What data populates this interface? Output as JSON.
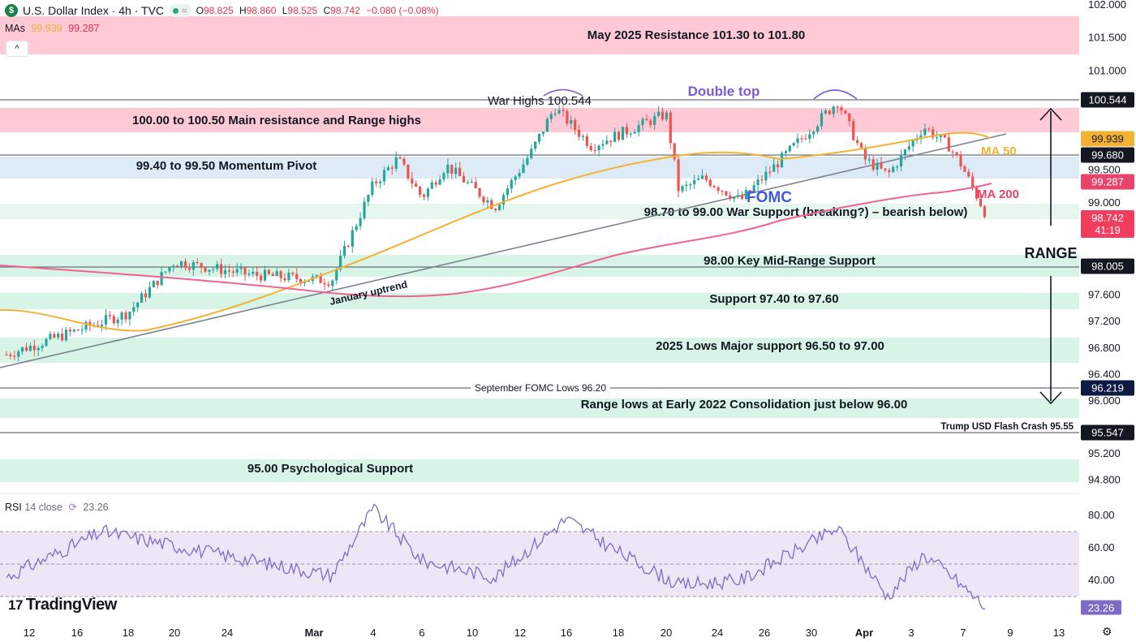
{
  "header": {
    "symbol_icon": "$",
    "title": "U.S. Dollar Index · 4h · TVC",
    "status_icon": "market-open-dot",
    "wave_icon": "≈",
    "ohlc": {
      "o_label": "O",
      "o": "98.825",
      "h_label": "H",
      "h": "98.860",
      "l_label": "L",
      "l": "98.525",
      "c_label": "C",
      "c": "98.742",
      "chg": "−0.080 (−0.08%)"
    }
  },
  "mas": {
    "label": "MAs",
    "ma50": "99.939",
    "ma200": "99.287"
  },
  "collapse_icon": "^",
  "rsi_header": {
    "label": "RSI",
    "params": "14 close",
    "value": "23.26"
  },
  "brand": {
    "mark": "17",
    "name": "TradingView"
  },
  "colors": {
    "up": "#26a69a",
    "down": "#ef5350",
    "ma50": "#f4b235",
    "ma200": "#f06292",
    "resistance_zone": "#ffc9d6",
    "pivot_zone": "#dcebf6",
    "support_zone": "#d7f4e6",
    "rsi": "#7e6bc4"
  },
  "chart_data": [
    {
      "type": "candlestick",
      "title": "U.S. Dollar Index · 4h · TVC",
      "ylim": [
        94.6,
        102.0
      ],
      "y_ticks": [
        "102.000",
        "101.500",
        "101.000",
        "99.500",
        "99.000",
        "97.600",
        "97.200",
        "96.800",
        "96.400",
        "96.000",
        "95.200",
        "94.800"
      ],
      "x_ticks": [
        "12",
        "16",
        "18",
        "20",
        "24",
        "Mar",
        "4",
        "6",
        "10",
        "12",
        "16",
        "18",
        "20",
        "24",
        "26",
        "30",
        "Apr",
        "3",
        "7",
        "9",
        "13"
      ],
      "key_points": [
        {
          "x": "Feb 11",
          "close": 96.55
        },
        {
          "x": "Feb 18",
          "close": 97.2
        },
        {
          "x": "Feb 20",
          "close": 98.0
        },
        {
          "x": "Feb 25",
          "close": 97.8
        },
        {
          "x": "Mar 1",
          "close": 97.7
        },
        {
          "x": "Mar 3",
          "close": 99.2
        },
        {
          "x": "Mar 4",
          "close": 99.6
        },
        {
          "x": "Mar 5",
          "close": 99.0
        },
        {
          "x": "Mar 7",
          "close": 99.5
        },
        {
          "x": "Mar 10",
          "close": 98.85
        },
        {
          "x": "Mar 12",
          "close": 99.7
        },
        {
          "x": "Mar 14",
          "close": 100.4
        },
        {
          "x": "Mar 16",
          "close": 99.8
        },
        {
          "x": "Mar 19",
          "close": 100.3
        },
        {
          "x": "Mar 20",
          "close": 99.1
        },
        {
          "x": "Mar 22",
          "close": 99.3
        },
        {
          "x": "Mar 24",
          "close": 98.95
        },
        {
          "x": "Mar 27",
          "close": 99.7
        },
        {
          "x": "Mar 30",
          "close": 100.5
        },
        {
          "x": "Mar 31",
          "close": 99.6
        },
        {
          "x": "Apr 1",
          "close": 99.35
        },
        {
          "x": "Apr 3",
          "close": 100.1
        },
        {
          "x": "Apr 5",
          "close": 99.8
        },
        {
          "x": "Apr 6",
          "close": 99.5
        },
        {
          "x": "Apr 7",
          "close": 98.74
        }
      ],
      "series": [
        {
          "name": "MA 50",
          "last": 99.939
        },
        {
          "name": "MA 200",
          "last": 99.287
        }
      ],
      "price_tags": [
        {
          "value": "100.544",
          "style": "dark"
        },
        {
          "value": "99.939",
          "style": "ma50"
        },
        {
          "value": "99.680",
          "style": "dark"
        },
        {
          "value": "99.287",
          "style": "ma200"
        },
        {
          "value": "98.742",
          "sub": "41:19",
          "style": "last"
        },
        {
          "value": "98.005",
          "style": "dark"
        },
        {
          "value": "96.219",
          "style": "navy"
        },
        {
          "value": "95.547",
          "style": "dark"
        }
      ],
      "zones": [
        {
          "label": "May 2025 Resistance 101.30 to 101.80",
          "low": 101.3,
          "high": 101.8,
          "kind": "resistance"
        },
        {
          "label": "100.00 to 100.50 Main resistance and Range highs",
          "low": 100.0,
          "high": 100.5,
          "kind": "resistance"
        },
        {
          "label": "99.40 to 99.50 Momentum Pivot",
          "low": 99.4,
          "high": 99.5,
          "kind": "pivot"
        },
        {
          "label": "98.70 to 99.00 War Support (breaking?) – bearish below)",
          "low": 98.7,
          "high": 99.0,
          "kind": "support"
        },
        {
          "label": "98.00 Key Mid-Range Support",
          "low": 97.9,
          "high": 98.1,
          "kind": "support"
        },
        {
          "label": "Support 97.40 to 97.60",
          "low": 97.4,
          "high": 97.6,
          "kind": "support"
        },
        {
          "label": "2025 Lows Major support 96.50 to 97.00",
          "low": 96.5,
          "high": 97.0,
          "kind": "support"
        },
        {
          "label": "Range lows at Early 2022 Consolidation just below 96.00",
          "low": 95.8,
          "high": 96.0,
          "kind": "support"
        },
        {
          "label": "95.00 Psychological Support",
          "low": 94.9,
          "high": 95.1,
          "kind": "support"
        }
      ],
      "levels": [
        {
          "label": "War Highs 100.544",
          "value": 100.544
        },
        {
          "label": "September FOMC Lows 96.20",
          "value": 96.2
        },
        {
          "label": "Trump USD Flash Crash 95.55",
          "value": 95.55
        },
        {
          "label": "",
          "value": 99.68
        },
        {
          "label": "",
          "value": 98.005
        }
      ],
      "annotations": [
        "Double top",
        "FOMC",
        "January uptrend",
        "MA 50",
        "MA 200",
        "RANGE"
      ]
    },
    {
      "type": "line",
      "title": "RSI 14 close",
      "ylim": [
        20,
        85
      ],
      "y_ticks": [
        "80.00",
        "60.00",
        "40.00"
      ],
      "levels": [
        70,
        50,
        30
      ],
      "last": "23.26",
      "key_points": [
        {
          "x": "Feb 11",
          "y": 42
        },
        {
          "x": "Feb 17",
          "y": 70
        },
        {
          "x": "Feb 24",
          "y": 55
        },
        {
          "x": "Mar 1",
          "y": 43
        },
        {
          "x": "Mar 3",
          "y": 84
        },
        {
          "x": "Mar 5",
          "y": 52
        },
        {
          "x": "Mar 10",
          "y": 42
        },
        {
          "x": "Mar 15",
          "y": 78
        },
        {
          "x": "Mar 17",
          "y": 58
        },
        {
          "x": "Mar 20",
          "y": 37
        },
        {
          "x": "Mar 24",
          "y": 40
        },
        {
          "x": "Mar 30",
          "y": 72
        },
        {
          "x": "Apr 1",
          "y": 30
        },
        {
          "x": "Apr 3",
          "y": 56
        },
        {
          "x": "Apr 5",
          "y": 44
        },
        {
          "x": "Apr 7",
          "y": 23.26
        }
      ]
    }
  ]
}
